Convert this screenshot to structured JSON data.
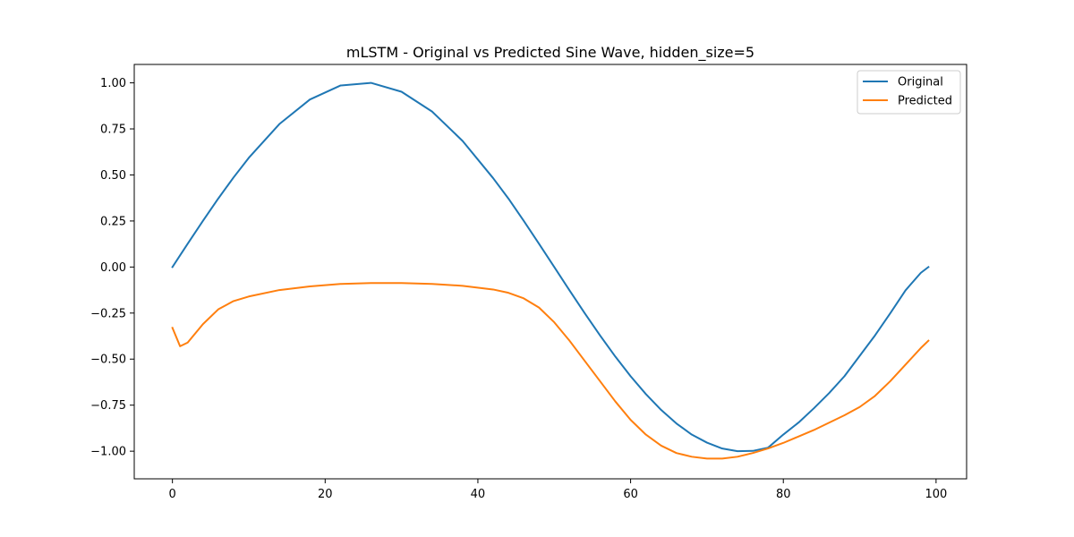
{
  "chart_data": {
    "type": "line",
    "title": "mLSTM - Original vs Predicted Sine Wave, hidden_size=5",
    "xlabel": "",
    "ylabel": "",
    "xlim": [
      -5,
      104
    ],
    "ylim": [
      -1.15,
      1.1
    ],
    "x_ticks": [
      0,
      20,
      40,
      60,
      80,
      100
    ],
    "x_tick_labels": [
      "0",
      "20",
      "40",
      "60",
      "80",
      "100"
    ],
    "y_ticks": [
      1.0,
      0.75,
      0.5,
      0.25,
      0.0,
      -0.25,
      -0.5,
      -0.75,
      -1.0
    ],
    "y_tick_labels": [
      "1.00",
      "0.75",
      "0.50",
      "0.25",
      "0.00",
      "−0.25",
      "−0.50",
      "−0.75",
      "−1.00"
    ],
    "grid": false,
    "legend_position": "top-right",
    "x": [
      0,
      1,
      2,
      4,
      6,
      8,
      10,
      14,
      18,
      22,
      26,
      30,
      34,
      38,
      42,
      44,
      46,
      48,
      50,
      52,
      54,
      56,
      58,
      60,
      62,
      64,
      66,
      68,
      70,
      72,
      74,
      76,
      78,
      80,
      82,
      84,
      86,
      88,
      90,
      92,
      94,
      96,
      98,
      99
    ],
    "series": [
      {
        "name": "Original",
        "color": "#1f77b4",
        "values": [
          0.0,
          0.0634,
          0.1266,
          0.2511,
          0.3717,
          0.4862,
          0.5929,
          0.7761,
          0.9096,
          0.9856,
          0.9999,
          0.9518,
          0.8443,
          0.6845,
          0.4825,
          0.3717,
          0.2511,
          0.1266,
          0.0,
          -0.1266,
          -0.2511,
          -0.3717,
          -0.4862,
          -0.5929,
          -0.6899,
          -0.7761,
          -0.8495,
          -0.9096,
          -0.9535,
          -0.9856,
          -0.9999,
          -0.9984,
          -0.9808,
          -0.9096,
          -0.8443,
          -0.7669,
          -0.6845,
          -0.5929,
          -0.4825,
          -0.3717,
          -0.2511,
          -0.1266,
          -0.0317,
          0.0
        ]
      },
      {
        "name": "Predicted",
        "color": "#ff7f0e",
        "values": [
          -0.33,
          -0.43,
          -0.41,
          -0.31,
          -0.23,
          -0.185,
          -0.16,
          -0.125,
          -0.105,
          -0.092,
          -0.087,
          -0.087,
          -0.092,
          -0.102,
          -0.122,
          -0.14,
          -0.17,
          -0.22,
          -0.3,
          -0.4,
          -0.51,
          -0.62,
          -0.73,
          -0.83,
          -0.91,
          -0.97,
          -1.01,
          -1.03,
          -1.04,
          -1.04,
          -1.03,
          -1.01,
          -0.985,
          -0.955,
          -0.92,
          -0.885,
          -0.845,
          -0.805,
          -0.76,
          -0.7,
          -0.62,
          -0.53,
          -0.44,
          -0.4
        ]
      }
    ]
  }
}
